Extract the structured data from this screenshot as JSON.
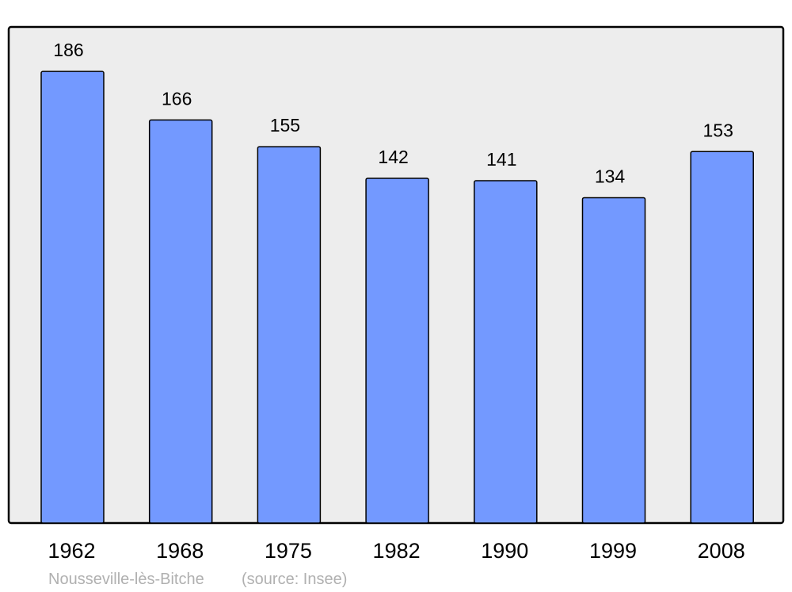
{
  "chart_data": {
    "type": "bar",
    "categories": [
      "1962",
      "1968",
      "1975",
      "1982",
      "1990",
      "1999",
      "2008"
    ],
    "values": [
      186,
      166,
      155,
      142,
      141,
      134,
      153
    ],
    "title": "",
    "xlabel": "",
    "ylabel": "",
    "ylim": [
      0,
      204
    ],
    "grid": false,
    "data_labels": true,
    "colors": {
      "bar": "#7399ff",
      "plot_background": "#ededed",
      "border": "#000000"
    }
  },
  "footer": {
    "place": "Nousseville-lès-Bitche",
    "source": "(source: Insee)"
  }
}
